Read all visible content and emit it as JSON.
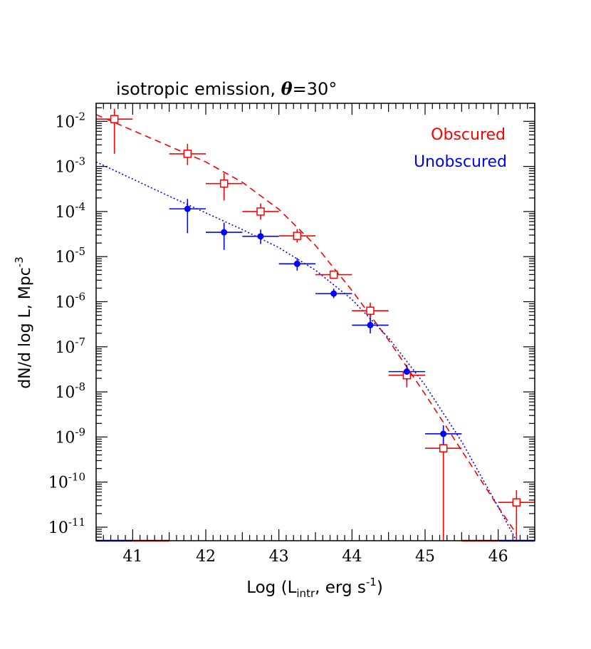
{
  "chart_data": {
    "type": "scatter",
    "title": "isotropic emission, θ=30°",
    "title_parts": {
      "prefix": "isotropic emission, ",
      "symbol": "θ",
      "suffix": "=30°"
    },
    "xlabel": "Log (L_intr, erg s^-1)",
    "xlabel_parts": {
      "pre": "Log (L",
      "sub": "intr",
      "mid": ", erg s",
      "sup": "-1",
      "post": ")"
    },
    "ylabel": "dN/d log L, Mpc^-3",
    "ylabel_parts": {
      "base": "dN/d log L, Mpc",
      "sup": "-3"
    },
    "x_scale": "linear",
    "y_scale": "log",
    "xlim": [
      40.5,
      46.5
    ],
    "ylim_log10": [
      -11.3,
      -1.6
    ],
    "x_ticks": [
      {
        "value": 41,
        "label": "41"
      },
      {
        "value": 42,
        "label": "42"
      },
      {
        "value": 43,
        "label": "43"
      },
      {
        "value": 44,
        "label": "44"
      },
      {
        "value": 45,
        "label": "45"
      },
      {
        "value": 46,
        "label": "46"
      }
    ],
    "y_ticks": [
      {
        "exp": -2,
        "base": "10",
        "sup": "-2"
      },
      {
        "exp": -3,
        "base": "10",
        "sup": "-3"
      },
      {
        "exp": -4,
        "base": "10",
        "sup": "-4"
      },
      {
        "exp": -5,
        "base": "10",
        "sup": "-5"
      },
      {
        "exp": -6,
        "base": "10",
        "sup": "-6"
      },
      {
        "exp": -7,
        "base": "10",
        "sup": "-7"
      },
      {
        "exp": -8,
        "base": "10",
        "sup": "-8"
      },
      {
        "exp": -9,
        "base": "10",
        "sup": "-9"
      },
      {
        "exp": -10,
        "base": "10",
        "sup": "-10"
      },
      {
        "exp": -11,
        "base": "10",
        "sup": "-11"
      }
    ],
    "legend_position": "top-right",
    "series": [
      {
        "name": "Obscured",
        "color": "#ff0000",
        "marker": "open-square",
        "model_line": "dashed",
        "points": [
          {
            "x": 40.75,
            "xerr": 0.25,
            "log_y": -1.95,
            "log_lo": -2.72,
            "log_hi": -1.72
          },
          {
            "x": 41.75,
            "xerr": 0.25,
            "log_y": -2.72,
            "log_lo": -2.97,
            "log_hi": -2.5
          },
          {
            "x": 42.25,
            "xerr": 0.25,
            "log_y": -3.38,
            "log_lo": -3.75,
            "log_hi": -3.15
          },
          {
            "x": 42.75,
            "xerr": 0.25,
            "log_y": -4.0,
            "log_lo": -4.18,
            "log_hi": -3.82
          },
          {
            "x": 43.25,
            "xerr": 0.25,
            "log_y": -4.54,
            "log_lo": -4.69,
            "log_hi": -4.39
          },
          {
            "x": 43.75,
            "xerr": 0.25,
            "log_y": -5.4,
            "log_lo": -5.49,
            "log_hi": -5.31
          },
          {
            "x": 44.25,
            "xerr": 0.25,
            "log_y": -6.2,
            "log_lo": -6.4,
            "log_hi": -6.02
          },
          {
            "x": 44.75,
            "xerr": 0.25,
            "log_y": -7.63,
            "log_lo": -7.9,
            "log_hi": -7.43
          },
          {
            "x": 45.25,
            "xerr": 0.25,
            "log_y": -9.25,
            "log_lo": -11.3,
            "log_hi": -9.1
          },
          {
            "x": 46.25,
            "xerr": 0.25,
            "log_y": -10.45,
            "log_lo": -11.3,
            "log_hi": -10.18
          }
        ],
        "model": [
          {
            "x": 40.5,
            "log_y": -1.85
          },
          {
            "x": 41.0,
            "log_y": -2.2
          },
          {
            "x": 41.5,
            "log_y": -2.55
          },
          {
            "x": 42.0,
            "log_y": -2.9
          },
          {
            "x": 42.5,
            "log_y": -3.35
          },
          {
            "x": 43.0,
            "log_y": -3.95
          },
          {
            "x": 43.5,
            "log_y": -4.75
          },
          {
            "x": 44.0,
            "log_y": -5.75
          },
          {
            "x": 44.5,
            "log_y": -6.85
          },
          {
            "x": 45.0,
            "log_y": -8.05
          },
          {
            "x": 45.5,
            "log_y": -9.3
          },
          {
            "x": 46.0,
            "log_y": -10.55
          },
          {
            "x": 46.25,
            "log_y": -11.15
          }
        ],
        "upper_limit_bins": [
          [
            41.0,
            41.5
          ],
          [
            45.5,
            46.0
          ]
        ]
      },
      {
        "name": "Unobscured",
        "color": "#0000ff",
        "marker": "filled-circle",
        "model_line": "dotted",
        "points": [
          {
            "x": 41.75,
            "xerr": 0.25,
            "log_y": -3.94,
            "log_lo": -4.48,
            "log_hi": -3.72
          },
          {
            "x": 42.25,
            "xerr": 0.25,
            "log_y": -4.46,
            "log_lo": -4.85,
            "log_hi": -4.25
          },
          {
            "x": 42.75,
            "xerr": 0.25,
            "log_y": -4.55,
            "log_lo": -4.72,
            "log_hi": -4.4
          },
          {
            "x": 43.25,
            "xerr": 0.25,
            "log_y": -5.16,
            "log_lo": -5.31,
            "log_hi": -5.03
          },
          {
            "x": 43.75,
            "xerr": 0.25,
            "log_y": -5.82,
            "log_lo": -5.92,
            "log_hi": -5.71
          },
          {
            "x": 44.25,
            "xerr": 0.25,
            "log_y": -6.52,
            "log_lo": -6.7,
            "log_hi": -6.36
          },
          {
            "x": 44.75,
            "xerr": 0.25,
            "log_y": -7.55,
            "log_lo": -7.75,
            "log_hi": -7.4
          },
          {
            "x": 45.25,
            "xerr": 0.25,
            "log_y": -8.93,
            "log_lo": -9.2,
            "log_hi": -8.74
          }
        ],
        "model": [
          {
            "x": 40.5,
            "log_y": -2.9
          },
          {
            "x": 41.0,
            "log_y": -3.28
          },
          {
            "x": 41.5,
            "log_y": -3.66
          },
          {
            "x": 42.0,
            "log_y": -4.03
          },
          {
            "x": 42.5,
            "log_y": -4.4
          },
          {
            "x": 43.0,
            "log_y": -4.8
          },
          {
            "x": 43.5,
            "log_y": -5.3
          },
          {
            "x": 44.0,
            "log_y": -5.95
          },
          {
            "x": 44.5,
            "log_y": -6.8
          },
          {
            "x": 45.0,
            "log_y": -7.85
          },
          {
            "x": 45.5,
            "log_y": -9.1
          },
          {
            "x": 46.0,
            "log_y": -10.55
          },
          {
            "x": 46.25,
            "log_y": -11.3
          }
        ],
        "upper_limit_bins": [
          [
            40.5,
            41.0
          ],
          [
            46.0,
            46.5
          ]
        ]
      }
    ]
  }
}
